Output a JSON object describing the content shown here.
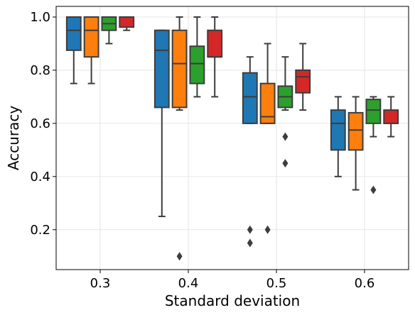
{
  "chart_data": {
    "type": "box",
    "xlabel": "Standard deviation",
    "ylabel": "Accuracy",
    "categories": [
      "0.3",
      "0.4",
      "0.5",
      "0.6"
    ],
    "ylim": [
      0.05,
      1.04
    ],
    "yticks": [
      0.2,
      0.4,
      0.6,
      0.8,
      1.0
    ],
    "yticklabels": [
      "0.2",
      "0.4",
      "0.6",
      "0.8",
      "1.0"
    ],
    "grid": true,
    "legend": "none",
    "series": [
      {
        "color": "#1f77b4",
        "boxes": [
          {
            "whislo": 0.75,
            "q1": 0.875,
            "med": 0.95,
            "q3": 1.0,
            "whishi": 1.0,
            "fliers": []
          },
          {
            "whislo": 0.25,
            "q1": 0.66,
            "med": 0.875,
            "q3": 0.95,
            "whishi": 0.95,
            "fliers": []
          },
          {
            "whislo": 0.6,
            "q1": 0.6,
            "med": 0.7,
            "q3": 0.79,
            "whishi": 0.85,
            "fliers": [
              0.2,
              0.15
            ]
          },
          {
            "whislo": 0.4,
            "q1": 0.5,
            "med": 0.6,
            "q3": 0.65,
            "whishi": 0.7,
            "fliers": []
          }
        ]
      },
      {
        "color": "#ff7f0e",
        "boxes": [
          {
            "whislo": 0.75,
            "q1": 0.85,
            "med": 0.95,
            "q3": 1.0,
            "whishi": 1.0,
            "fliers": []
          },
          {
            "whislo": 0.65,
            "q1": 0.66,
            "med": 0.825,
            "q3": 0.95,
            "whishi": 1.0,
            "fliers": [
              0.1
            ]
          },
          {
            "whislo": 0.6,
            "q1": 0.6,
            "med": 0.625,
            "q3": 0.75,
            "whishi": 0.9,
            "fliers": [
              0.2
            ]
          },
          {
            "whislo": 0.35,
            "q1": 0.5,
            "med": 0.575,
            "q3": 0.64,
            "whishi": 0.7,
            "fliers": []
          }
        ]
      },
      {
        "color": "#2ca02c",
        "boxes": [
          {
            "whislo": 0.9,
            "q1": 0.95,
            "med": 0.975,
            "q3": 1.0,
            "whishi": 1.0,
            "fliers": []
          },
          {
            "whislo": 0.7,
            "q1": 0.75,
            "med": 0.825,
            "q3": 0.89,
            "whishi": 1.0,
            "fliers": []
          },
          {
            "whislo": 0.65,
            "q1": 0.66,
            "med": 0.7,
            "q3": 0.74,
            "whishi": 0.85,
            "fliers": [
              0.55,
              0.45
            ]
          },
          {
            "whislo": 0.55,
            "q1": 0.6,
            "med": 0.65,
            "q3": 0.69,
            "whishi": 0.7,
            "fliers": [
              0.35
            ]
          }
        ]
      },
      {
        "color": "#d62728",
        "boxes": [
          {
            "whislo": 0.95,
            "q1": 0.962,
            "med": 1.0,
            "q3": 1.0,
            "whishi": 1.0,
            "fliers": []
          },
          {
            "whislo": 0.7,
            "q1": 0.85,
            "med": 0.85,
            "q3": 0.95,
            "whishi": 1.0,
            "fliers": []
          },
          {
            "whislo": 0.65,
            "q1": 0.715,
            "med": 0.775,
            "q3": 0.8,
            "whishi": 0.9,
            "fliers": []
          },
          {
            "whislo": 0.55,
            "q1": 0.6,
            "med": 0.6,
            "q3": 0.65,
            "whishi": 0.7,
            "fliers": []
          }
        ]
      }
    ]
  }
}
